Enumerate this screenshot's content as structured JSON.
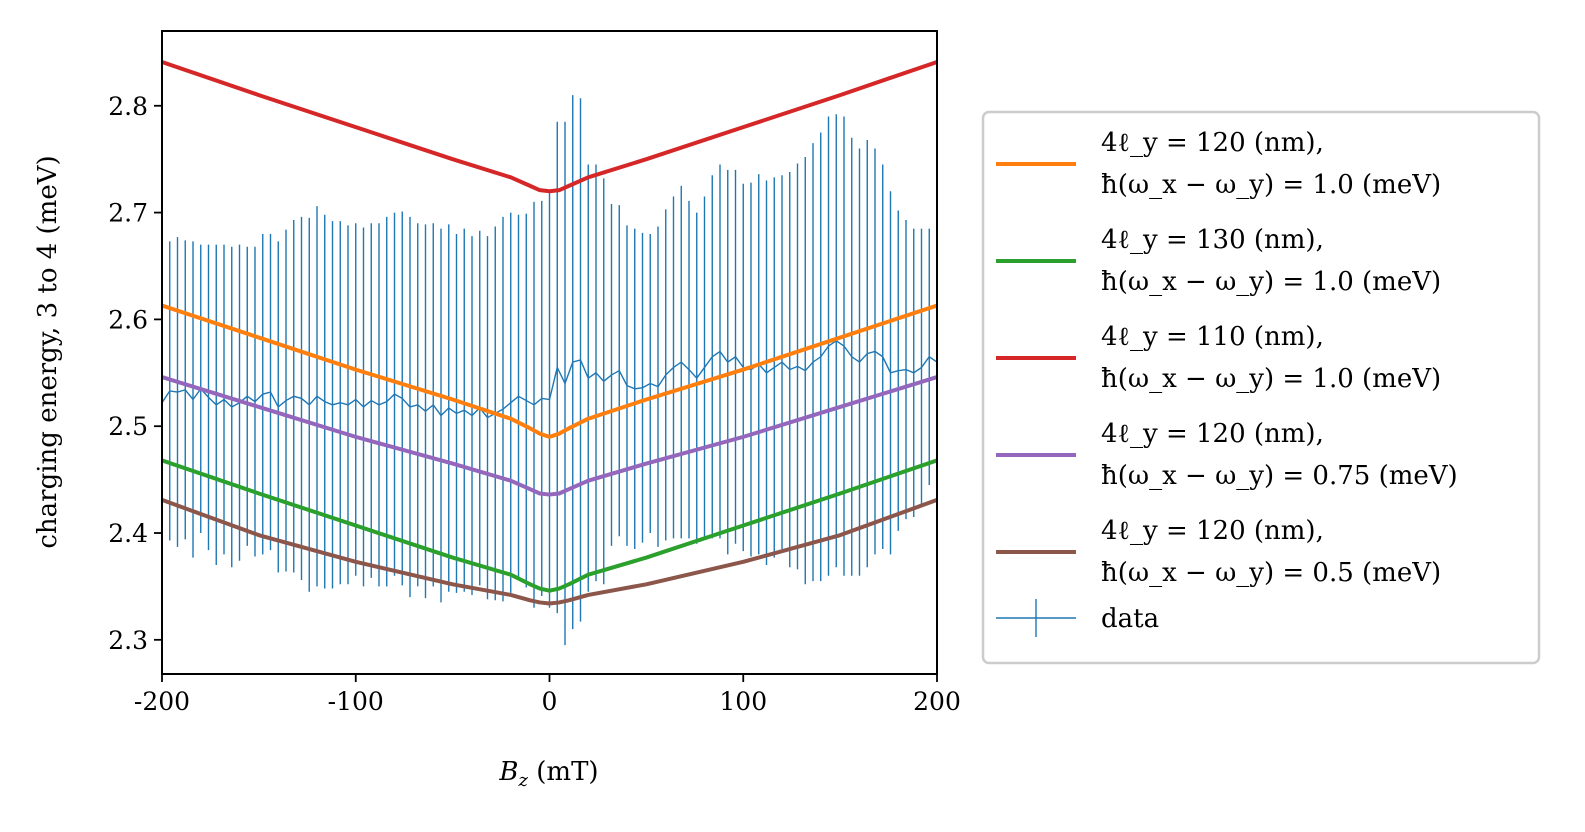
{
  "chart_data": {
    "type": "line",
    "xlabel": "B_z (mT)",
    "ylabel": "charging energy, 3 to 4 (meV)",
    "xlim": [
      -200,
      200
    ],
    "ylim": [
      2.268,
      2.87
    ],
    "xticks": [
      -200,
      -100,
      0,
      100,
      200
    ],
    "xtick_labels": [
      "-200",
      "-100",
      "0",
      "100",
      "200"
    ],
    "yticks": [
      2.3,
      2.4,
      2.5,
      2.6,
      2.7,
      2.8
    ],
    "ytick_labels": [
      "2.3",
      "2.4",
      "2.5",
      "2.6",
      "2.7",
      "2.8"
    ],
    "grid": false,
    "legend_position": "outside-right",
    "series": [
      {
        "name": "4ℓ_y = 120 (nm), ħ(ω_x − ω_y) = 1.0 (meV)",
        "legend_lines": [
          "4ℓ_y = 120 (nm),",
          "ħ(ω_x − ω_y) = 1.0 (meV)"
        ],
        "color": "#ff7f0e",
        "x": [
          -200,
          -150,
          -100,
          -50,
          -20,
          -10,
          -5,
          0,
          5,
          10,
          20,
          50,
          100,
          150,
          200
        ],
        "y": [
          2.613,
          2.583,
          2.553,
          2.525,
          2.507,
          2.498,
          2.493,
          2.49,
          2.493,
          2.498,
          2.507,
          2.525,
          2.553,
          2.583,
          2.613
        ]
      },
      {
        "name": "4ℓ_y = 130 (nm), ħ(ω_x − ω_y) = 1.0 (meV)",
        "legend_lines": [
          "4ℓ_y = 130 (nm),",
          "ħ(ω_x − ω_y) = 1.0 (meV)"
        ],
        "color": "#2ca02c",
        "x": [
          -200,
          -150,
          -100,
          -50,
          -20,
          -10,
          -5,
          0,
          5,
          10,
          20,
          50,
          100,
          150,
          200
        ],
        "y": [
          2.468,
          2.437,
          2.407,
          2.377,
          2.361,
          2.352,
          2.348,
          2.346,
          2.348,
          2.352,
          2.361,
          2.377,
          2.407,
          2.437,
          2.468
        ]
      },
      {
        "name": "4ℓ_y = 110 (nm), ħ(ω_x − ω_y) = 1.0 (meV)",
        "legend_lines": [
          "4ℓ_y = 110 (nm),",
          "ħ(ω_x − ω_y) = 1.0 (meV)"
        ],
        "color": "#d62728",
        "x": [
          -200,
          -150,
          -100,
          -50,
          -20,
          -10,
          -5,
          0,
          5,
          10,
          20,
          50,
          100,
          150,
          200
        ],
        "y": [
          2.841,
          2.81,
          2.78,
          2.75,
          2.733,
          2.725,
          2.721,
          2.72,
          2.721,
          2.725,
          2.733,
          2.75,
          2.78,
          2.81,
          2.841
        ]
      },
      {
        "name": "4ℓ_y = 120 (nm), ħ(ω_x − ω_y) = 0.75 (meV)",
        "legend_lines": [
          "4ℓ_y = 120 (nm),",
          "ħ(ω_x − ω_y) = 0.75 (meV)"
        ],
        "color": "#9467bd",
        "x": [
          -200,
          -150,
          -100,
          -50,
          -20,
          -10,
          -5,
          0,
          5,
          10,
          20,
          50,
          100,
          150,
          200
        ],
        "y": [
          2.546,
          2.518,
          2.49,
          2.465,
          2.449,
          2.441,
          2.437,
          2.436,
          2.437,
          2.441,
          2.449,
          2.465,
          2.49,
          2.518,
          2.546
        ]
      },
      {
        "name": "4ℓ_y = 120 (nm), ħ(ω_x − ω_y) = 0.5 (meV)",
        "legend_lines": [
          "4ℓ_y = 120 (nm),",
          "ħ(ω_x − ω_y) = 0.5 (meV)"
        ],
        "color": "#8c564b",
        "x": [
          -200,
          -150,
          -100,
          -50,
          -20,
          -10,
          -5,
          0,
          5,
          10,
          20,
          50,
          100,
          150,
          200
        ],
        "y": [
          2.431,
          2.398,
          2.373,
          2.352,
          2.342,
          2.337,
          2.335,
          2.334,
          2.335,
          2.337,
          2.342,
          2.352,
          2.373,
          2.398,
          2.431
        ]
      }
    ],
    "data_series": {
      "name": "data",
      "color": "#1f77b4",
      "x": [
        -200,
        -196,
        -192,
        -188,
        -184,
        -180,
        -176,
        -172,
        -168,
        -164,
        -160,
        -156,
        -152,
        -148,
        -144,
        -140,
        -136,
        -132,
        -128,
        -124,
        -120,
        -116,
        -112,
        -108,
        -104,
        -100,
        -96,
        -92,
        -88,
        -84,
        -80,
        -76,
        -72,
        -68,
        -64,
        -60,
        -56,
        -52,
        -48,
        -44,
        -40,
        -36,
        -32,
        -28,
        -24,
        -20,
        -16,
        -12,
        -8,
        -4,
        0,
        4,
        8,
        12,
        16,
        20,
        24,
        28,
        32,
        36,
        40,
        44,
        48,
        52,
        56,
        60,
        64,
        68,
        72,
        76,
        80,
        84,
        88,
        92,
        96,
        100,
        104,
        108,
        112,
        116,
        120,
        124,
        128,
        132,
        136,
        140,
        144,
        148,
        152,
        156,
        160,
        164,
        168,
        172,
        176,
        180,
        184,
        188,
        192,
        196,
        200
      ],
      "y": [
        2.522,
        2.533,
        2.532,
        2.534,
        2.525,
        2.535,
        2.527,
        2.52,
        2.525,
        2.518,
        2.522,
        2.528,
        2.523,
        2.53,
        2.532,
        2.518,
        2.524,
        2.528,
        2.526,
        2.52,
        2.528,
        2.523,
        2.52,
        2.522,
        2.52,
        2.525,
        2.518,
        2.524,
        2.52,
        2.523,
        2.53,
        2.526,
        2.518,
        2.52,
        2.514,
        2.52,
        2.51,
        2.517,
        2.512,
        2.515,
        2.51,
        2.517,
        2.508,
        2.512,
        2.516,
        2.522,
        2.528,
        2.524,
        2.52,
        2.526,
        2.525,
        2.555,
        2.54,
        2.56,
        2.562,
        2.545,
        2.55,
        2.542,
        2.548,
        2.552,
        2.538,
        2.535,
        2.536,
        2.54,
        2.537,
        2.548,
        2.555,
        2.56,
        2.553,
        2.545,
        2.555,
        2.565,
        2.57,
        2.56,
        2.565,
        2.555,
        2.553,
        2.558,
        2.55,
        2.555,
        2.56,
        2.553,
        2.556,
        2.552,
        2.56,
        2.565,
        2.575,
        2.58,
        2.575,
        2.565,
        2.56,
        2.568,
        2.57,
        2.565,
        2.55,
        2.552,
        2.553,
        2.55,
        2.555,
        2.565,
        2.56
      ],
      "yerr": [
        0.145,
        0.14,
        0.145,
        0.14,
        0.148,
        0.135,
        0.143,
        0.15,
        0.145,
        0.15,
        0.148,
        0.14,
        0.145,
        0.15,
        0.148,
        0.155,
        0.16,
        0.165,
        0.17,
        0.175,
        0.178,
        0.175,
        0.172,
        0.17,
        0.168,
        0.165,
        0.168,
        0.166,
        0.17,
        0.173,
        0.17,
        0.175,
        0.178,
        0.17,
        0.175,
        0.17,
        0.175,
        0.172,
        0.168,
        0.17,
        0.168,
        0.166,
        0.17,
        0.175,
        0.18,
        0.178,
        0.17,
        0.175,
        0.19,
        0.185,
        0.195,
        0.23,
        0.245,
        0.25,
        0.245,
        0.2,
        0.195,
        0.19,
        0.16,
        0.155,
        0.15,
        0.15,
        0.145,
        0.14,
        0.15,
        0.155,
        0.16,
        0.165,
        0.158,
        0.155,
        0.16,
        0.17,
        0.175,
        0.18,
        0.175,
        0.172,
        0.175,
        0.178,
        0.18,
        0.178,
        0.175,
        0.185,
        0.19,
        0.2,
        0.205,
        0.21,
        0.215,
        0.212,
        0.215,
        0.205,
        0.2,
        0.2,
        0.19,
        0.18,
        0.17,
        0.15,
        0.14,
        0.135,
        0.13,
        0.12,
        0.115
      ]
    }
  }
}
